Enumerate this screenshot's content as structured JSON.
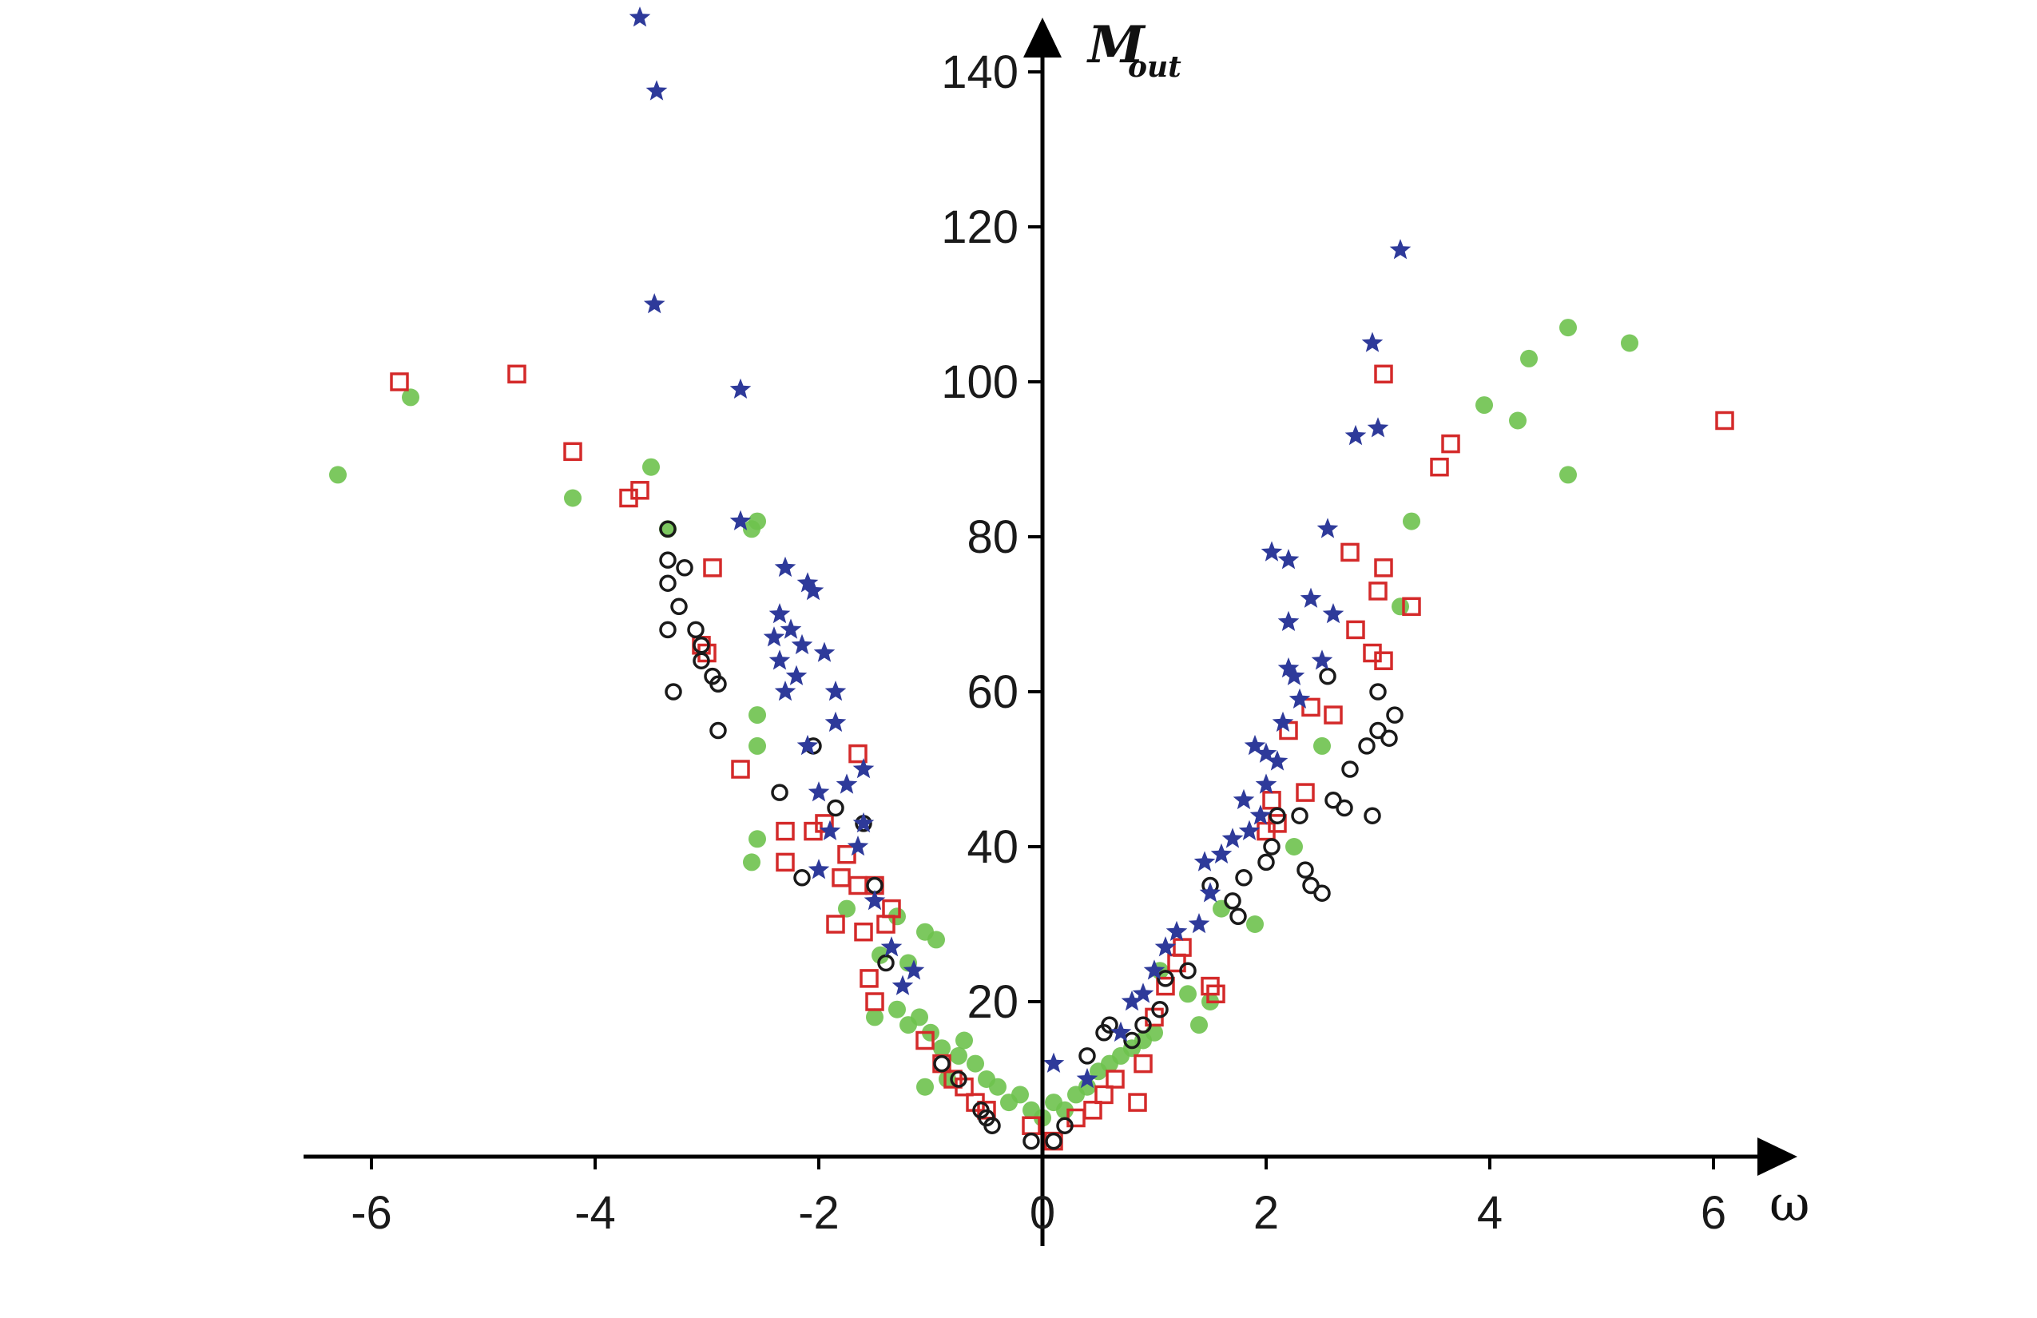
{
  "chart_data": {
    "type": "scatter",
    "xlabel": "ω",
    "ylabel_main": "M",
    "ylabel_sub": "out",
    "xlim": [
      -6.6,
      6.6
    ],
    "ylim": [
      0,
      146
    ],
    "x_ticks": [
      -6,
      -4,
      -2,
      0,
      2,
      4,
      6
    ],
    "y_ticks": [
      20,
      40,
      60,
      80,
      100,
      120,
      140
    ],
    "grid": false,
    "legend": "none",
    "colors": {
      "star": "#2e3a9a",
      "circle": "#1a1a1a",
      "square": "#d42a2a",
      "dot": "#6ec24e"
    },
    "series": [
      {
        "marker": "star",
        "points": [
          [
            -3.6,
            147
          ],
          [
            -3.45,
            137.5
          ],
          [
            -3.47,
            110
          ],
          [
            -2.7,
            99
          ],
          [
            -2.7,
            82
          ],
          [
            -2.3,
            76
          ],
          [
            -2.1,
            74
          ],
          [
            -2.05,
            73
          ],
          [
            -2.35,
            70
          ],
          [
            -2.25,
            68
          ],
          [
            -2.4,
            67
          ],
          [
            -2.15,
            66
          ],
          [
            -2.35,
            64
          ],
          [
            -1.95,
            65
          ],
          [
            -2.2,
            62
          ],
          [
            -2.3,
            60
          ],
          [
            -1.85,
            60
          ],
          [
            -1.85,
            56
          ],
          [
            -2.1,
            53
          ],
          [
            -1.6,
            50
          ],
          [
            -1.75,
            48
          ],
          [
            -2.0,
            47
          ],
          [
            -1.6,
            43
          ],
          [
            -1.9,
            42
          ],
          [
            -1.65,
            40
          ],
          [
            -2.0,
            37
          ],
          [
            -1.5,
            33
          ],
          [
            -1.35,
            27
          ],
          [
            -1.15,
            24
          ],
          [
            -1.25,
            22
          ],
          [
            0.1,
            12
          ],
          [
            0.4,
            10
          ],
          [
            0.7,
            16
          ],
          [
            0.9,
            21
          ],
          [
            0.8,
            20
          ],
          [
            1.0,
            24
          ],
          [
            1.1,
            27
          ],
          [
            1.2,
            29
          ],
          [
            1.4,
            30
          ],
          [
            1.5,
            34
          ],
          [
            1.45,
            38
          ],
          [
            1.6,
            39
          ],
          [
            1.7,
            41
          ],
          [
            1.85,
            42
          ],
          [
            1.95,
            44
          ],
          [
            1.8,
            46
          ],
          [
            2.0,
            48
          ],
          [
            2.1,
            51
          ],
          [
            2.0,
            52
          ],
          [
            1.9,
            53
          ],
          [
            2.15,
            56
          ],
          [
            2.3,
            59
          ],
          [
            2.25,
            62
          ],
          [
            2.2,
            63
          ],
          [
            2.5,
            64
          ],
          [
            2.2,
            69
          ],
          [
            2.4,
            72
          ],
          [
            2.05,
            78
          ],
          [
            2.2,
            77
          ],
          [
            2.6,
            70
          ],
          [
            2.55,
            81
          ],
          [
            2.8,
            93
          ],
          [
            3.0,
            94
          ],
          [
            2.95,
            105
          ],
          [
            3.2,
            117
          ]
        ]
      },
      {
        "marker": "circle",
        "points": [
          [
            -3.35,
            81
          ],
          [
            -3.35,
            77
          ],
          [
            -3.2,
            76
          ],
          [
            -3.35,
            74
          ],
          [
            -3.25,
            71
          ],
          [
            -3.1,
            68
          ],
          [
            -3.35,
            68
          ],
          [
            -3.05,
            66
          ],
          [
            -3.05,
            64
          ],
          [
            -2.95,
            62
          ],
          [
            -2.9,
            61
          ],
          [
            -3.3,
            60
          ],
          [
            -2.9,
            55
          ],
          [
            -2.35,
            47
          ],
          [
            -2.05,
            53
          ],
          [
            -1.85,
            45
          ],
          [
            -2.15,
            36
          ],
          [
            -1.6,
            43
          ],
          [
            -1.5,
            35
          ],
          [
            -1.4,
            25
          ],
          [
            -0.9,
            12
          ],
          [
            -0.75,
            10
          ],
          [
            -0.55,
            6
          ],
          [
            -0.5,
            5
          ],
          [
            -0.45,
            4
          ],
          [
            -0.1,
            2
          ],
          [
            0.1,
            2
          ],
          [
            0.2,
            4
          ],
          [
            0.4,
            13
          ],
          [
            0.55,
            16
          ],
          [
            0.6,
            17
          ],
          [
            0.8,
            15
          ],
          [
            0.9,
            17
          ],
          [
            1.05,
            19
          ],
          [
            1.1,
            23
          ],
          [
            1.3,
            24
          ],
          [
            1.5,
            35
          ],
          [
            1.7,
            33
          ],
          [
            1.75,
            31
          ],
          [
            1.8,
            36
          ],
          [
            2.0,
            38
          ],
          [
            2.05,
            40
          ],
          [
            2.1,
            44
          ],
          [
            2.3,
            44
          ],
          [
            2.35,
            37
          ],
          [
            2.4,
            35
          ],
          [
            2.5,
            34
          ],
          [
            2.55,
            62
          ],
          [
            2.6,
            46
          ],
          [
            2.7,
            45
          ],
          [
            2.75,
            50
          ],
          [
            2.9,
            53
          ],
          [
            2.95,
            44
          ],
          [
            3.0,
            60
          ],
          [
            3.0,
            55
          ],
          [
            3.1,
            54
          ],
          [
            3.15,
            57
          ]
        ]
      },
      {
        "marker": "square",
        "points": [
          [
            -5.75,
            100
          ],
          [
            -4.7,
            101
          ],
          [
            -4.2,
            91
          ],
          [
            -3.7,
            85
          ],
          [
            -3.6,
            86
          ],
          [
            -2.95,
            76
          ],
          [
            -3.05,
            66
          ],
          [
            -3.0,
            65
          ],
          [
            -2.7,
            50
          ],
          [
            -2.05,
            42
          ],
          [
            -1.95,
            43
          ],
          [
            -2.3,
            42
          ],
          [
            -1.75,
            39
          ],
          [
            -1.8,
            36
          ],
          [
            -2.3,
            38
          ],
          [
            -1.65,
            52
          ],
          [
            -1.65,
            35
          ],
          [
            -1.5,
            35
          ],
          [
            -1.85,
            30
          ],
          [
            -1.6,
            29
          ],
          [
            -1.4,
            30
          ],
          [
            -1.35,
            32
          ],
          [
            -1.55,
            23
          ],
          [
            -1.5,
            20
          ],
          [
            -1.05,
            15
          ],
          [
            -0.9,
            12
          ],
          [
            -0.8,
            10
          ],
          [
            -0.7,
            9
          ],
          [
            -0.6,
            7
          ],
          [
            -0.5,
            6
          ],
          [
            -0.1,
            4
          ],
          [
            0.1,
            2
          ],
          [
            0.3,
            5
          ],
          [
            0.45,
            6
          ],
          [
            0.55,
            8
          ],
          [
            0.65,
            10
          ],
          [
            0.85,
            7
          ],
          [
            0.9,
            12
          ],
          [
            1.0,
            18
          ],
          [
            1.1,
            22
          ],
          [
            1.2,
            25
          ],
          [
            1.25,
            27
          ],
          [
            1.5,
            22
          ],
          [
            1.55,
            21
          ],
          [
            2.0,
            42
          ],
          [
            2.05,
            46
          ],
          [
            2.1,
            43
          ],
          [
            2.2,
            55
          ],
          [
            2.35,
            47
          ],
          [
            2.4,
            58
          ],
          [
            2.6,
            57
          ],
          [
            2.75,
            78
          ],
          [
            2.8,
            68
          ],
          [
            2.95,
            65
          ],
          [
            3.05,
            64
          ],
          [
            3.0,
            73
          ],
          [
            3.05,
            76
          ],
          [
            3.05,
            101
          ],
          [
            3.3,
            71
          ],
          [
            3.55,
            89
          ],
          [
            3.65,
            92
          ],
          [
            6.1,
            95
          ]
        ]
      },
      {
        "marker": "dot",
        "points": [
          [
            -6.3,
            88
          ],
          [
            -5.65,
            98
          ],
          [
            -4.2,
            85
          ],
          [
            -3.5,
            89
          ],
          [
            -3.35,
            81
          ],
          [
            -2.55,
            82
          ],
          [
            -2.6,
            81
          ],
          [
            -2.55,
            57
          ],
          [
            -2.55,
            53
          ],
          [
            -2.55,
            41
          ],
          [
            -2.6,
            38
          ],
          [
            -1.75,
            32
          ],
          [
            -1.45,
            26
          ],
          [
            -1.3,
            31
          ],
          [
            -1.2,
            25
          ],
          [
            -1.05,
            29
          ],
          [
            -0.95,
            28
          ],
          [
            -1.5,
            18
          ],
          [
            -1.3,
            19
          ],
          [
            -1.2,
            17
          ],
          [
            -1.1,
            18
          ],
          [
            -1.0,
            16
          ],
          [
            -0.9,
            14
          ],
          [
            -0.75,
            13
          ],
          [
            -0.7,
            15
          ],
          [
            -0.6,
            12
          ],
          [
            -0.5,
            10
          ],
          [
            -0.4,
            9
          ],
          [
            -0.3,
            7
          ],
          [
            -0.2,
            8
          ],
          [
            -0.1,
            6
          ],
          [
            -1.05,
            9
          ],
          [
            -0.85,
            10
          ],
          [
            0.0,
            5
          ],
          [
            0.1,
            7
          ],
          [
            0.2,
            6
          ],
          [
            0.3,
            8
          ],
          [
            0.4,
            9
          ],
          [
            0.5,
            11
          ],
          [
            0.6,
            12
          ],
          [
            0.7,
            13
          ],
          [
            0.8,
            14
          ],
          [
            0.9,
            15
          ],
          [
            1.0,
            16
          ],
          [
            1.05,
            24
          ],
          [
            1.3,
            21
          ],
          [
            1.4,
            17
          ],
          [
            1.5,
            20
          ],
          [
            1.9,
            30
          ],
          [
            1.6,
            32
          ],
          [
            2.25,
            40
          ],
          [
            2.5,
            53
          ],
          [
            3.2,
            71
          ],
          [
            3.3,
            82
          ],
          [
            3.95,
            97
          ],
          [
            4.25,
            95
          ],
          [
            4.35,
            103
          ],
          [
            4.7,
            107
          ],
          [
            4.7,
            88
          ],
          [
            5.25,
            105
          ]
        ]
      }
    ]
  }
}
